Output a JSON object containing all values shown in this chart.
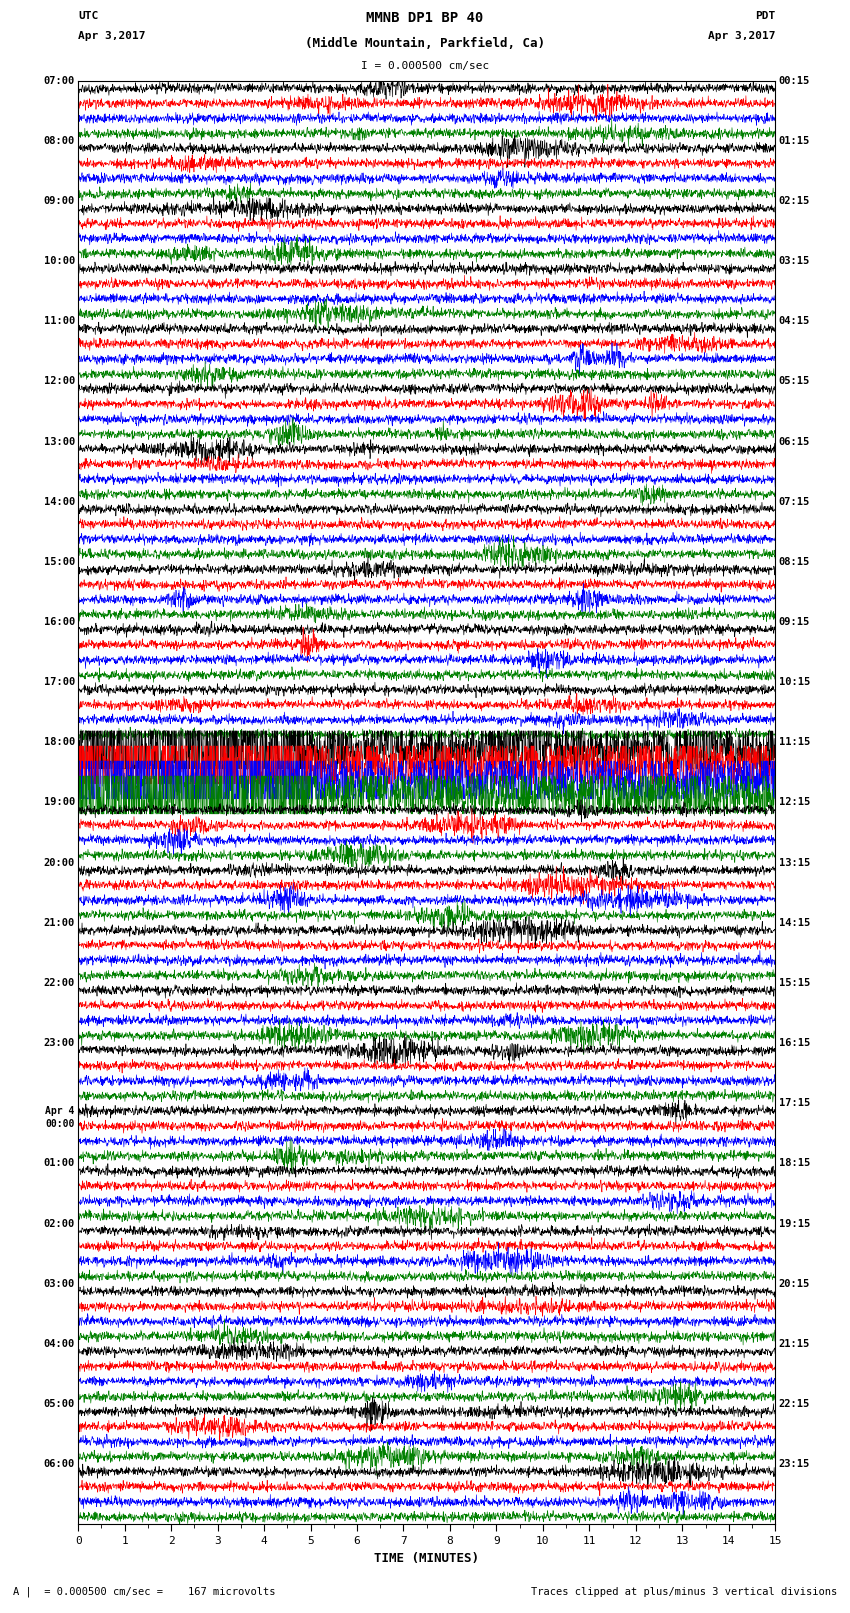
{
  "title_line1": "MMNB DP1 BP 40",
  "title_line2": "(Middle Mountain, Parkfield, Ca)",
  "scale_label": "I = 0.000500 cm/sec",
  "footer_scale": "A |  = 0.000500 cm/sec =    167 microvolts",
  "footer_right": "Traces clipped at plus/minus 3 vertical divisions",
  "left_date": "Apr 3,2017",
  "right_date": "Apr 3,2017",
  "left_tz": "UTC",
  "right_tz": "PDT",
  "xlabel": "TIME (MINUTES)",
  "bg_color": "#ffffff",
  "trace_colors": [
    "#000000",
    "#ff0000",
    "#0000ff",
    "#008000"
  ],
  "left_times": [
    "07:00",
    "08:00",
    "09:00",
    "10:00",
    "11:00",
    "12:00",
    "13:00",
    "14:00",
    "15:00",
    "16:00",
    "17:00",
    "18:00",
    "19:00",
    "20:00",
    "21:00",
    "22:00",
    "23:00",
    "Apr 4\n00:00",
    "01:00",
    "02:00",
    "03:00",
    "04:00",
    "05:00",
    "06:00"
  ],
  "right_times": [
    "00:15",
    "01:15",
    "02:15",
    "03:15",
    "04:15",
    "05:15",
    "06:15",
    "07:15",
    "08:15",
    "09:15",
    "10:15",
    "11:15",
    "12:15",
    "13:15",
    "14:15",
    "15:15",
    "16:15",
    "17:15",
    "18:15",
    "19:15",
    "20:15",
    "21:15",
    "22:15",
    "23:15"
  ],
  "num_hour_groups": 24,
  "traces_per_group": 4,
  "xmin": 0,
  "xmax": 15,
  "noise_seed": 42,
  "large_event_group": 11
}
